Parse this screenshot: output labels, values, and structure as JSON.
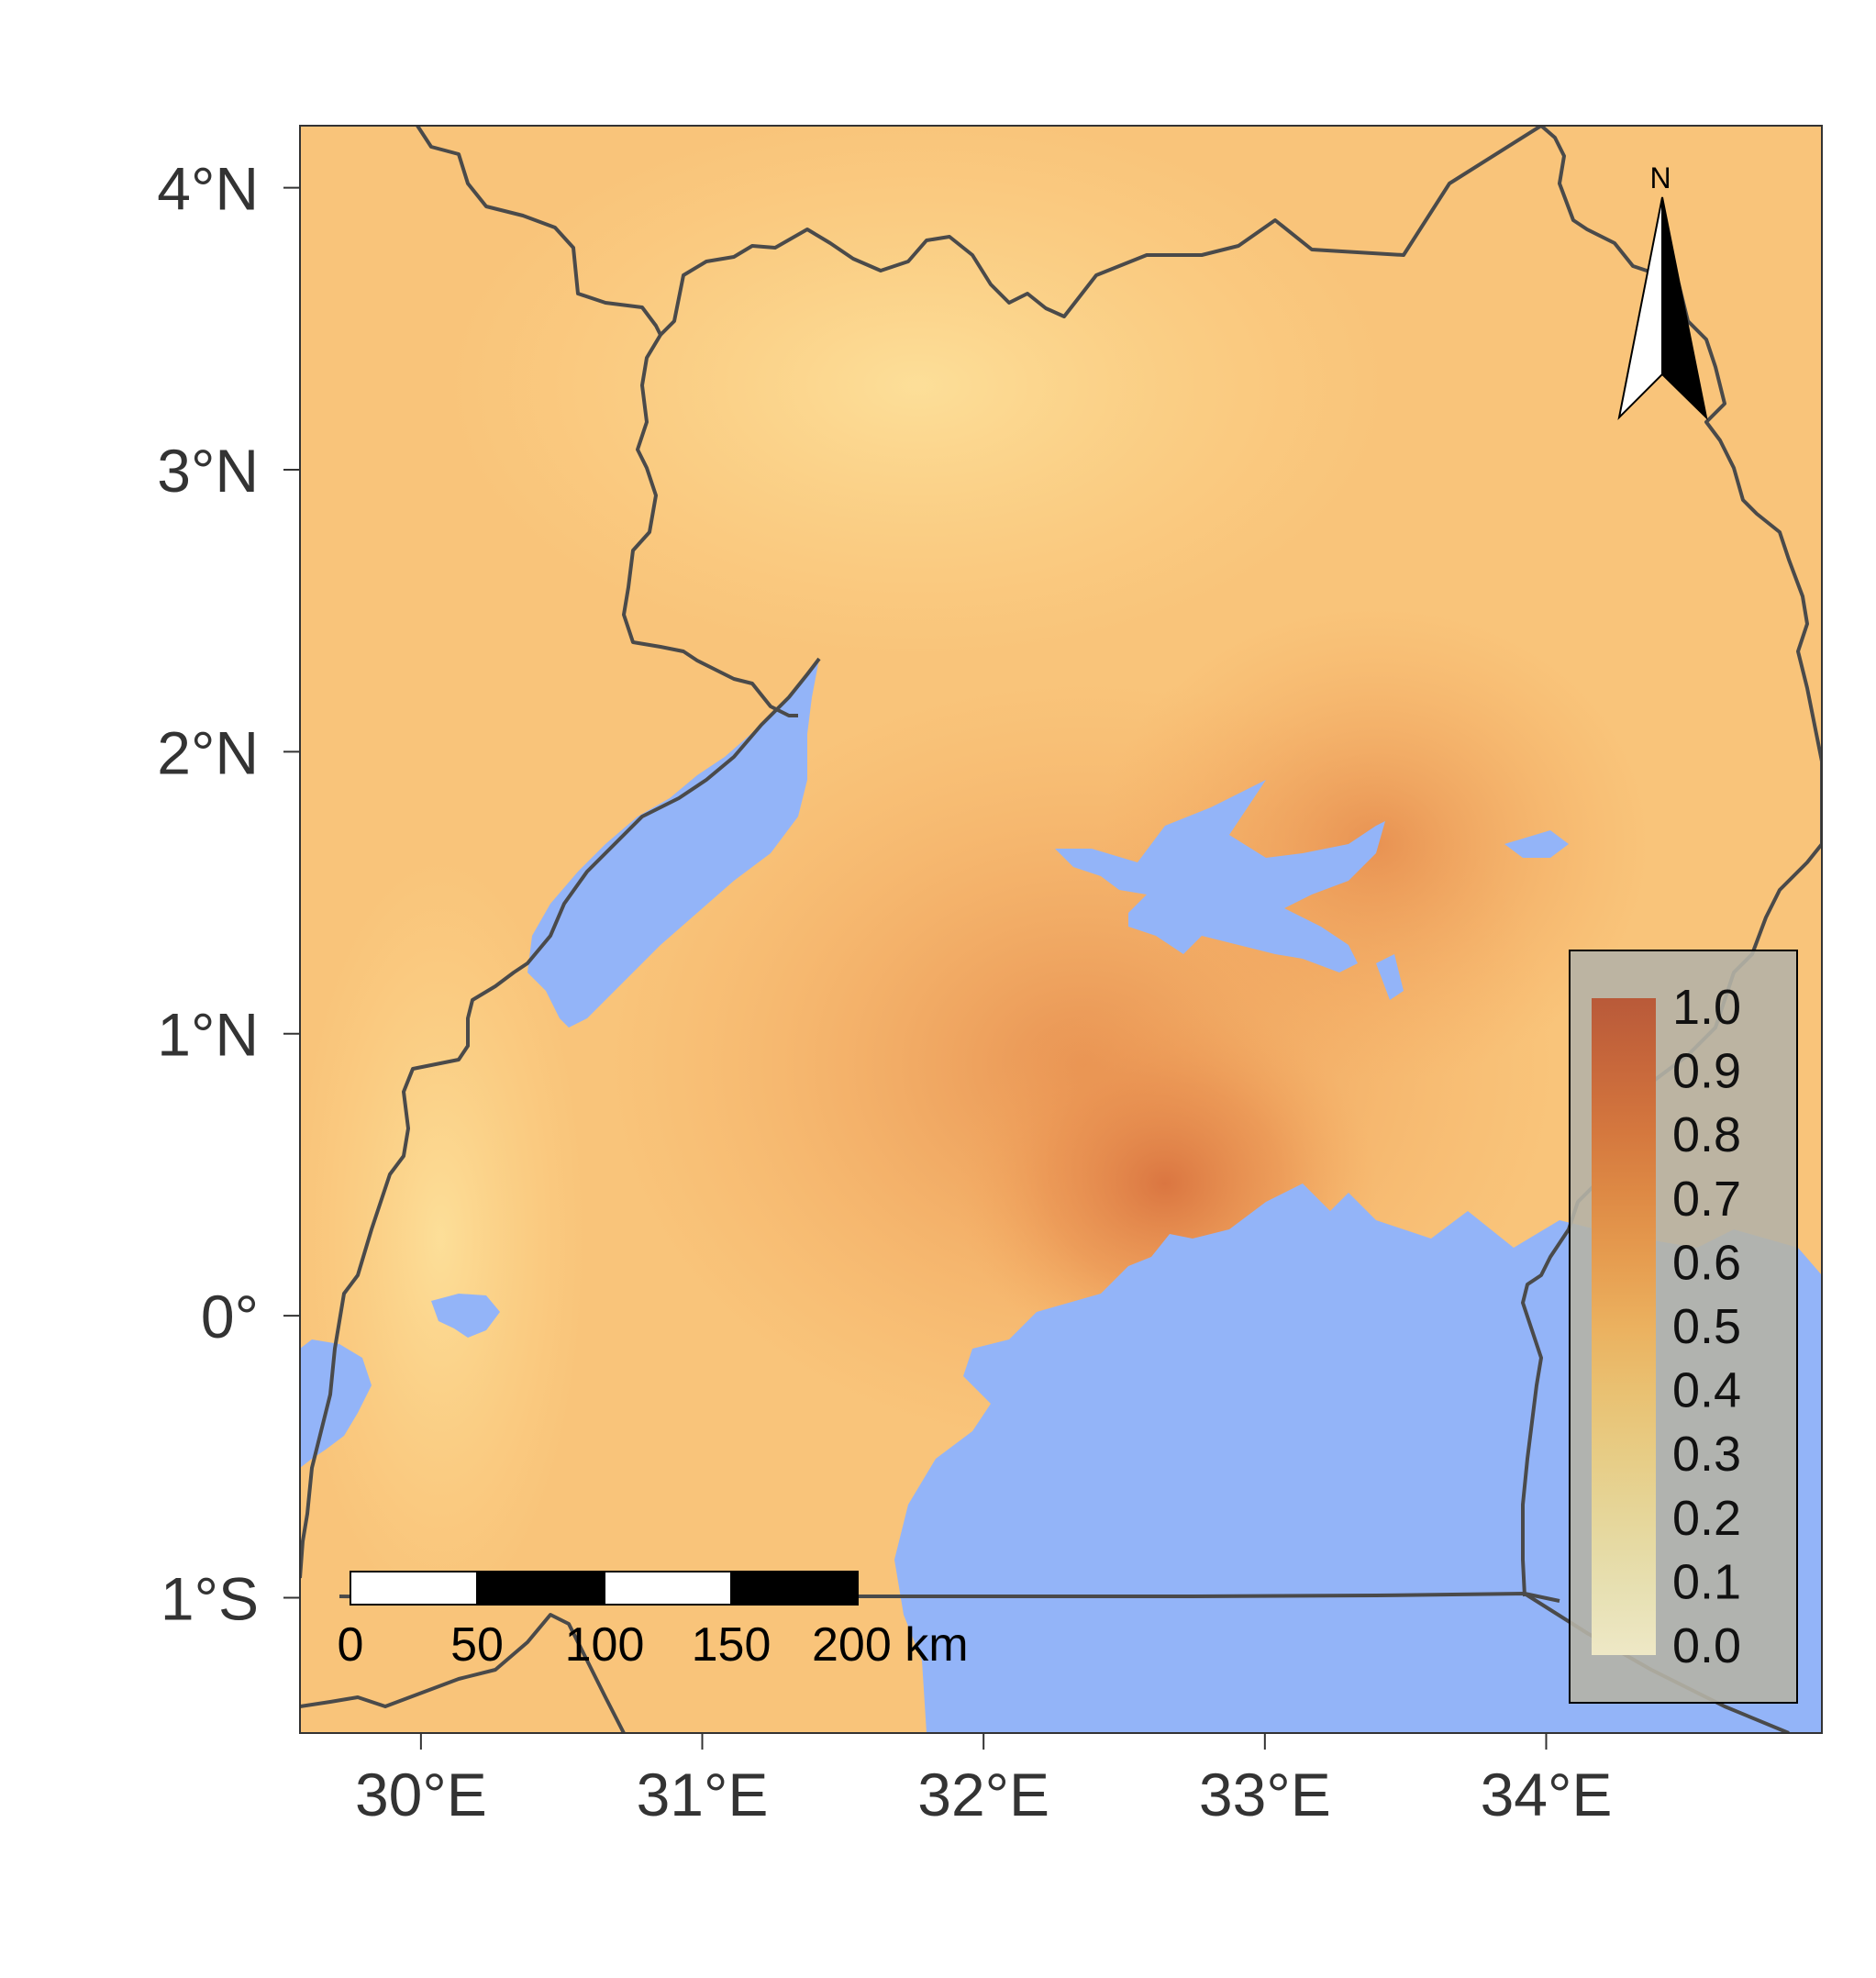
{
  "map": {
    "lat_ticks": [
      {
        "lat": 4,
        "label": "4°N"
      },
      {
        "lat": 3,
        "label": "3°N"
      },
      {
        "lat": 2,
        "label": "2°N"
      },
      {
        "lat": 1,
        "label": "1°N"
      },
      {
        "lat": 0,
        "label": "0°"
      },
      {
        "lat": -1,
        "label": "1°S"
      }
    ],
    "lon_ticks": [
      {
        "lon": 30,
        "label": "30°E"
      },
      {
        "lon": 31,
        "label": "31°E"
      },
      {
        "lon": 32,
        "label": "32°E"
      },
      {
        "lon": 33,
        "label": "33°E"
      },
      {
        "lon": 34,
        "label": "34°E"
      }
    ],
    "extent": {
      "lon_min": 29.57,
      "lon_max": 34.98,
      "lat_min": -1.48,
      "lat_max": 4.22
    },
    "colors": {
      "land_low": "#fbd58a",
      "land_mid": "#f4a85e",
      "land_high": "#dd7a45",
      "water": "#93b4f8",
      "border": "#4a4a4a",
      "legend_bg": "#b5b2a6"
    }
  },
  "legend": {
    "labels": [
      "1.0",
      "0.9",
      "0.8",
      "0.7",
      "0.6",
      "0.5",
      "0.4",
      "0.3",
      "0.2",
      "0.1",
      "0.0"
    ],
    "colors": [
      "#b95a39",
      "#c7673b",
      "#d4773e",
      "#de8a45",
      "#e69d50",
      "#ebb15f",
      "#e9c172",
      "#e7cd86",
      "#e6d79c",
      "#e7e0b2",
      "#eee8c6"
    ]
  },
  "scalebar": {
    "labels": [
      "0",
      "50",
      "100",
      "150",
      "200 km"
    ]
  },
  "north_arrow": {
    "label": "N",
    "icon": "north-arrow-icon"
  }
}
